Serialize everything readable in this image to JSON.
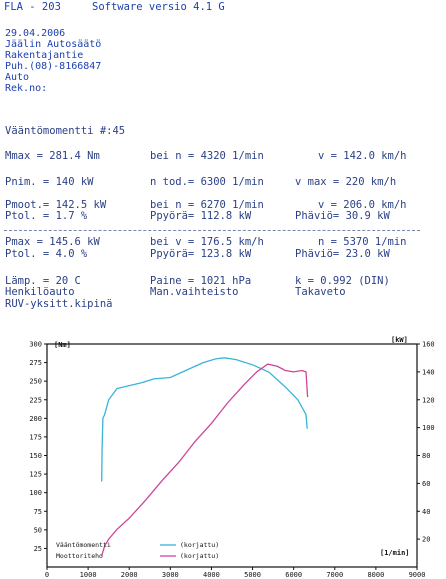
{
  "header": {
    "model": "FLA - 203",
    "software": "Software versio  4.1 G"
  },
  "address": {
    "date": "29.04.2006",
    "company": "Jäälin Autosäätö",
    "street": "Rakentajantie",
    "phone": "Puh.(08)-8166847",
    "vehicle": "Auto",
    "reg": "Rek.no:"
  },
  "report": {
    "title": "Vääntömomentti  #:45"
  },
  "rows": {
    "r1a": "Mmax  =  281.4 Nm",
    "r1b": "bei n =   4320 1/min",
    "r1c": "v =  142.0 km/h",
    "r2a": "Pnim. =   140 kW",
    "r2b": "n tod.=   6300 1/min",
    "r2c": "v max =   220 km/h",
    "r3a": "Pmoot.=  142.5 kW",
    "r3b": "bei n =   6270 1/min",
    "r3c": "v =  206.0 km/h",
    "r4a": "Ptol. =   1.7 %",
    "r4b": "Ppyörä=  112.8 kW",
    "r4c": "Phäviö=   30.9 kW",
    "r5a": "Pmax  =  145.6 kW",
    "r5b": "bei v =  176.5 km/h",
    "r5c": "n =   5370 1/min",
    "r6a": "Ptol. =   4.0 %",
    "r6b": "Ppyörä=  123.8 kW",
    "r6c": "Phäviö=   23.0 kW",
    "r7a": "Lämp. =   20  C",
    "r7b": "Paine = 1021   hPa",
    "r7c": "k    =  0.992 (DIN)",
    "r8a": "Henkilöauto",
    "r8b": "Man.vaihteisto",
    "r8c": "Takaveto",
    "r9a": "RUV-yksitt.kipinä"
  },
  "chart_data": {
    "type": "line",
    "xlabel": "[1/min]",
    "ylabel_left": "[Nm]",
    "ylabel_right": "[kW]",
    "xlim": [
      0,
      9000
    ],
    "ylim_left": [
      0,
      300
    ],
    "ylim_right": [
      0,
      160
    ],
    "x_ticks": [
      "0",
      "1000",
      "2000",
      "3000",
      "4000",
      "5000",
      "6000",
      "7000",
      "8000",
      "9000"
    ],
    "y_ticks_left": [
      "25",
      "50",
      "75",
      "100",
      "125",
      "150",
      "175",
      "200",
      "225",
      "250",
      "275",
      "300"
    ],
    "y_ticks_right": [
      "20",
      "40",
      "60",
      "80",
      "100",
      "120",
      "140",
      "160"
    ],
    "series": [
      {
        "name": "Vääntömomentti",
        "legend_suffix": "(korjattu)",
        "color": "#3bb4d8",
        "axis": "left",
        "x": [
          1330,
          1340,
          1360,
          1400,
          1500,
          1700,
          2000,
          2300,
          2600,
          3000,
          3400,
          3800,
          4100,
          4320,
          4600,
          5000,
          5400,
          5800,
          6100,
          6300,
          6330
        ],
        "y": [
          115,
          160,
          200,
          205,
          225,
          240,
          244,
          248,
          253,
          255,
          265,
          275,
          280,
          281.4,
          279,
          272,
          262,
          242,
          225,
          205,
          186
        ]
      },
      {
        "name": "Moottoriteho",
        "legend_suffix": "(korjattu)",
        "color": "#d0449a",
        "axis": "right",
        "x": [
          1330,
          1400,
          1500,
          1700,
          2000,
          2400,
          2800,
          3200,
          3600,
          4000,
          4400,
          4800,
          5100,
          5370,
          5600,
          5800,
          6000,
          6200,
          6300,
          6340
        ],
        "y": [
          8,
          15,
          20,
          27,
          35,
          48,
          62,
          75,
          90,
          103,
          118,
          131,
          140,
          145.6,
          144,
          141,
          140,
          141,
          140,
          122
        ]
      }
    ]
  }
}
